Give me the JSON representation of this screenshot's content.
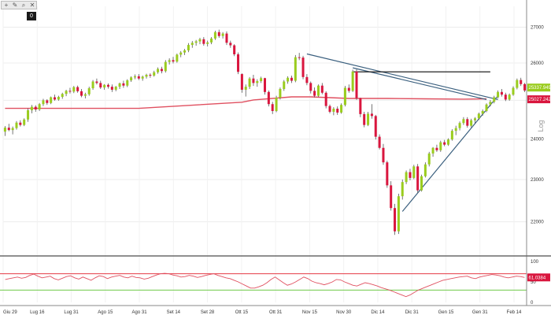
{
  "toolbar": {
    "icons": [
      "crosshair-icon",
      "pencil-icon",
      "zoom-icon",
      "close-icon"
    ]
  },
  "series_badge": "0",
  "colors": {
    "bull": "#9acc1e",
    "bear": "#d9163e",
    "moving_average": "#e05060",
    "trendline": "#3a5f7e",
    "resistance": "#222222",
    "osc_line": "#e05060",
    "osc_upper": "#e53945",
    "osc_lower": "#6fca4a"
  },
  "chart_data": [
    {
      "type": "candlestick",
      "title": "",
      "y_scale": "log",
      "y_axis_label": "Log",
      "ylim": [
        21400,
        27600
      ],
      "y_ticks": [
        22000,
        23000,
        24000,
        25000,
        26000,
        27000
      ],
      "x_tick_labels": [
        "Giu 29",
        "Lug 16",
        "Lug 31",
        "Ago 15",
        "Ago 31",
        "Set 14",
        "Set 28",
        "Ott 15",
        "Ott 31",
        "Nov 15",
        "Nov 30",
        "Dic 14",
        "Dic 31",
        "Gen 15",
        "Gen 31",
        "Feb 14"
      ],
      "price_tags": [
        {
          "label": "25337.9492",
          "value": 25338,
          "color": "#9acc1e"
        },
        {
          "label": "25027.2422",
          "value": 25027,
          "color": "#d9163e"
        }
      ],
      "ohlc": [
        [
          24190,
          24330,
          24080,
          24290
        ],
        [
          24290,
          24390,
          24200,
          24230
        ],
        [
          24230,
          24320,
          24120,
          24280
        ],
        [
          24280,
          24460,
          24240,
          24420
        ],
        [
          24420,
          24480,
          24320,
          24360
        ],
        [
          24360,
          24530,
          24330,
          24500
        ],
        [
          24500,
          24790,
          24440,
          24740
        ],
        [
          24740,
          24880,
          24660,
          24830
        ],
        [
          24830,
          24870,
          24700,
          24760
        ],
        [
          24760,
          24930,
          24720,
          24900
        ],
        [
          24900,
          25040,
          24850,
          25000
        ],
        [
          25000,
          25030,
          24880,
          24930
        ],
        [
          24930,
          25100,
          24900,
          25080
        ],
        [
          25080,
          25150,
          24990,
          25020
        ],
        [
          25020,
          25120,
          24990,
          25090
        ],
        [
          25090,
          25200,
          25040,
          25170
        ],
        [
          25170,
          25280,
          25110,
          25250
        ],
        [
          25250,
          25330,
          25180,
          25230
        ],
        [
          25230,
          25380,
          25190,
          25350
        ],
        [
          25350,
          25390,
          25200,
          25240
        ],
        [
          25240,
          25300,
          25080,
          25120
        ],
        [
          25120,
          25200,
          25050,
          25160
        ],
        [
          25160,
          25360,
          25120,
          25320
        ],
        [
          25320,
          25540,
          25280,
          25500
        ],
        [
          25500,
          25580,
          25420,
          25460
        ],
        [
          25460,
          25520,
          25300,
          25340
        ],
        [
          25340,
          25430,
          25280,
          25410
        ],
        [
          25410,
          25450,
          25310,
          25360
        ],
        [
          25360,
          25420,
          25220,
          25280
        ],
        [
          25280,
          25380,
          25240,
          25360
        ],
        [
          25360,
          25470,
          25300,
          25450
        ],
        [
          25450,
          25520,
          25330,
          25390
        ],
        [
          25390,
          25560,
          25350,
          25530
        ],
        [
          25530,
          25640,
          25490,
          25610
        ],
        [
          25610,
          25690,
          25560,
          25640
        ],
        [
          25640,
          25700,
          25540,
          25580
        ],
        [
          25580,
          25660,
          25520,
          25630
        ],
        [
          25630,
          25710,
          25580,
          25680
        ],
        [
          25680,
          25720,
          25600,
          25660
        ],
        [
          25660,
          25790,
          25630,
          25750
        ],
        [
          25750,
          25880,
          25710,
          25840
        ],
        [
          25840,
          25900,
          25720,
          25780
        ],
        [
          25780,
          26080,
          25740,
          26030
        ],
        [
          26030,
          26130,
          25960,
          26080
        ],
        [
          26080,
          26170,
          25990,
          26040
        ],
        [
          26040,
          26260,
          26010,
          26230
        ],
        [
          26230,
          26330,
          26160,
          26290
        ],
        [
          26290,
          26390,
          26220,
          26350
        ],
        [
          26350,
          26550,
          26300,
          26500
        ],
        [
          26500,
          26610,
          26420,
          26560
        ],
        [
          26560,
          26640,
          26480,
          26600
        ],
        [
          26600,
          26700,
          26520,
          26660
        ],
        [
          26660,
          26720,
          26480,
          26530
        ],
        [
          26530,
          26620,
          26460,
          26570
        ],
        [
          26570,
          26720,
          26520,
          26680
        ],
        [
          26680,
          26900,
          26640,
          26860
        ],
        [
          26860,
          26930,
          26700,
          26750
        ],
        [
          26750,
          26860,
          26680,
          26820
        ],
        [
          26820,
          26880,
          26500,
          26560
        ],
        [
          26560,
          26620,
          26420,
          26490
        ],
        [
          26490,
          26520,
          26190,
          26240
        ],
        [
          26240,
          26290,
          25700,
          25760
        ],
        [
          25700,
          25720,
          25200,
          25280
        ],
        [
          25280,
          25420,
          25100,
          25360
        ],
        [
          25360,
          25620,
          25300,
          25580
        ],
        [
          25580,
          25680,
          25380,
          25460
        ],
        [
          25460,
          25560,
          25360,
          25510
        ],
        [
          25510,
          25630,
          25460,
          25590
        ],
        [
          25590,
          25600,
          25150,
          25220
        ],
        [
          25220,
          25260,
          24840,
          24900
        ],
        [
          24900,
          24960,
          24640,
          24720
        ],
        [
          24720,
          25120,
          24690,
          25070
        ],
        [
          25070,
          25340,
          25020,
          25300
        ],
        [
          25300,
          25540,
          25250,
          25500
        ],
        [
          25500,
          25640,
          25440,
          25600
        ],
        [
          25600,
          25660,
          25460,
          25520
        ],
        [
          25520,
          26220,
          25480,
          26160
        ],
        [
          26160,
          26280,
          26080,
          26150
        ],
        [
          26150,
          26200,
          25560,
          25620
        ],
        [
          25620,
          25700,
          25400,
          25460
        ],
        [
          25460,
          25500,
          25180,
          25250
        ],
        [
          25250,
          25340,
          25080,
          25120
        ],
        [
          25120,
          25420,
          25090,
          25390
        ],
        [
          25390,
          25460,
          25160,
          25200
        ],
        [
          25200,
          25240,
          24790,
          24850
        ],
        [
          24850,
          24890,
          24660,
          24700
        ],
        [
          24700,
          24820,
          24610,
          24780
        ],
        [
          24780,
          24840,
          24620,
          24680
        ],
        [
          24680,
          24920,
          24650,
          24880
        ],
        [
          24880,
          25380,
          24840,
          25330
        ],
        [
          25330,
          25420,
          25200,
          25250
        ],
        [
          25250,
          25820,
          25220,
          25770
        ],
        [
          25770,
          25830,
          25010,
          25060
        ],
        [
          25060,
          25070,
          24560,
          24640
        ],
        [
          24640,
          24700,
          24300,
          24360
        ],
        [
          24360,
          24700,
          24330,
          24650
        ],
        [
          24650,
          24900,
          24520,
          24590
        ],
        [
          24590,
          24620,
          23990,
          24060
        ],
        [
          24060,
          24120,
          23740,
          23780
        ],
        [
          23780,
          23880,
          23360,
          23420
        ],
        [
          23420,
          23460,
          22800,
          22860
        ],
        [
          22860,
          22960,
          22260,
          22320
        ],
        [
          22320,
          22420,
          21700,
          21780
        ],
        [
          21780,
          22660,
          21720,
          22600
        ],
        [
          22600,
          23000,
          22520,
          22940
        ],
        [
          22940,
          23220,
          22890,
          23180
        ],
        [
          23180,
          23260,
          22980,
          23040
        ],
        [
          23040,
          23360,
          23010,
          23320
        ],
        [
          23320,
          23380,
          22680,
          22740
        ],
        [
          22740,
          23120,
          22710,
          23080
        ],
        [
          23080,
          23420,
          23050,
          23370
        ],
        [
          23370,
          23680,
          23320,
          23640
        ],
        [
          23640,
          23800,
          23560,
          23780
        ],
        [
          23780,
          23860,
          23680,
          23720
        ],
        [
          23720,
          23960,
          23680,
          23920
        ],
        [
          23920,
          23980,
          23820,
          23860
        ],
        [
          23860,
          24020,
          23830,
          23990
        ],
        [
          23990,
          24250,
          23960,
          24210
        ],
        [
          24210,
          24340,
          24100,
          24280
        ],
        [
          24280,
          24450,
          24220,
          24410
        ],
        [
          24410,
          24560,
          24360,
          24510
        ],
        [
          24510,
          24560,
          24290,
          24340
        ],
        [
          24340,
          24520,
          24300,
          24480
        ],
        [
          24480,
          24560,
          24400,
          24530
        ],
        [
          24530,
          24680,
          24490,
          24650
        ],
        [
          24650,
          24760,
          24600,
          24720
        ],
        [
          24720,
          24920,
          24690,
          24890
        ],
        [
          24890,
          25010,
          24840,
          24960
        ],
        [
          24960,
          25120,
          24920,
          25080
        ],
        [
          25080,
          25260,
          25050,
          25220
        ],
        [
          25220,
          25300,
          25100,
          25150
        ],
        [
          25150,
          25200,
          24980,
          25020
        ],
        [
          25020,
          25180,
          24990,
          25150
        ],
        [
          25150,
          25370,
          25120,
          25330
        ],
        [
          25330,
          25580,
          25290,
          25540
        ],
        [
          25540,
          25600,
          25380,
          25430
        ],
        [
          25430,
          25460,
          25220,
          25260
        ]
      ],
      "moving_average": [
        [
          0,
          24790
        ],
        [
          35,
          24790
        ],
        [
          62,
          24950
        ],
        [
          65,
          25010
        ],
        [
          75,
          25090
        ],
        [
          80,
          25090
        ],
        [
          90,
          25050
        ],
        [
          100,
          25050
        ],
        [
          110,
          25040
        ],
        [
          120,
          25030
        ],
        [
          126,
          25040
        ]
      ],
      "trendlines": [
        {
          "from": [
            79,
            26250
          ],
          "to": [
            129,
            25020
          ]
        },
        {
          "from": [
            91,
            25870
          ],
          "to": [
            126,
            25020
          ]
        },
        {
          "from": [
            104,
            22240
          ],
          "to": [
            129,
            25120
          ]
        }
      ],
      "resistance_line": {
        "from_index": 91,
        "to_index": 127,
        "value": 25760
      }
    },
    {
      "type": "line",
      "title": "",
      "ylim": [
        0,
        100
      ],
      "y_ticks": [
        0,
        50,
        100
      ],
      "upper_level": 70,
      "lower_level": 30,
      "last_value_label": "61.0384",
      "values": [
        56,
        58,
        60,
        62,
        59,
        61,
        66,
        69,
        64,
        60,
        62,
        64,
        58,
        55,
        59,
        63,
        65,
        60,
        57,
        62,
        58,
        54,
        60,
        65,
        63,
        58,
        62,
        64,
        66,
        62,
        60,
        64,
        61,
        60,
        57,
        59,
        63,
        67,
        70,
        71,
        70,
        67,
        65,
        62,
        63,
        66,
        64,
        61,
        63,
        66,
        68,
        70,
        66,
        63,
        60,
        58,
        54,
        50,
        45,
        40,
        35,
        35,
        38,
        42,
        48,
        56,
        62,
        55,
        48,
        42,
        45,
        50,
        56,
        62,
        58,
        52,
        48,
        46,
        43,
        46,
        50,
        56,
        55,
        50,
        46,
        42,
        40,
        44,
        48,
        46,
        43,
        40,
        36,
        33,
        30,
        26,
        22,
        18,
        14,
        18,
        24,
        30,
        34,
        38,
        42,
        46,
        50,
        54,
        56,
        58,
        60,
        62,
        63,
        64,
        60,
        58,
        62,
        64,
        66,
        68,
        67,
        65,
        62,
        60,
        62,
        64,
        63,
        61
      ]
    }
  ]
}
